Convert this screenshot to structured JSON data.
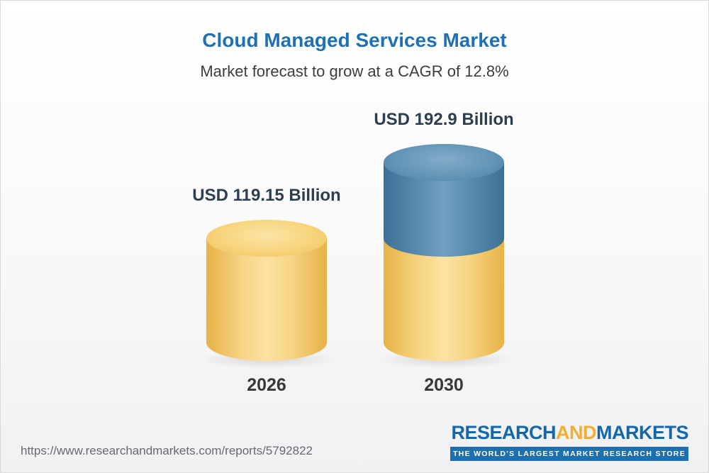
{
  "header": {
    "title": "Cloud Managed Services Market",
    "subtitle": "Market forecast to grow at a CAGR of 12.8%"
  },
  "chart_data": {
    "type": "bar",
    "bar_style": "3d-cylinder",
    "title": "Cloud Managed Services Market",
    "subtitle": "Market forecast to grow at a CAGR of 12.8%",
    "cagr_percent": 12.8,
    "categories": [
      "2026",
      "2030"
    ],
    "values": [
      119.15,
      192.9
    ],
    "value_labels": [
      "USD 119.15 Billion",
      "USD 192.9 Billion"
    ],
    "unit": "USD Billion",
    "ylim": [
      0,
      200
    ],
    "grid": false,
    "legend": false,
    "stacked_segments_2030": {
      "base_gold": 119.15,
      "growth_blue": 73.75
    },
    "colors": {
      "gold_bar": "#f3c35c",
      "blue_bar": "#4e84ab",
      "title_blue": "#2070b4"
    }
  },
  "footer": {
    "url": "https://www.researchandmarkets.com/reports/5792822",
    "logo": {
      "part1": "RESEARCH",
      "part2": "AND",
      "part3": "MARKETS",
      "tagline": "THE WORLD'S LARGEST MARKET RESEARCH STORE"
    }
  }
}
